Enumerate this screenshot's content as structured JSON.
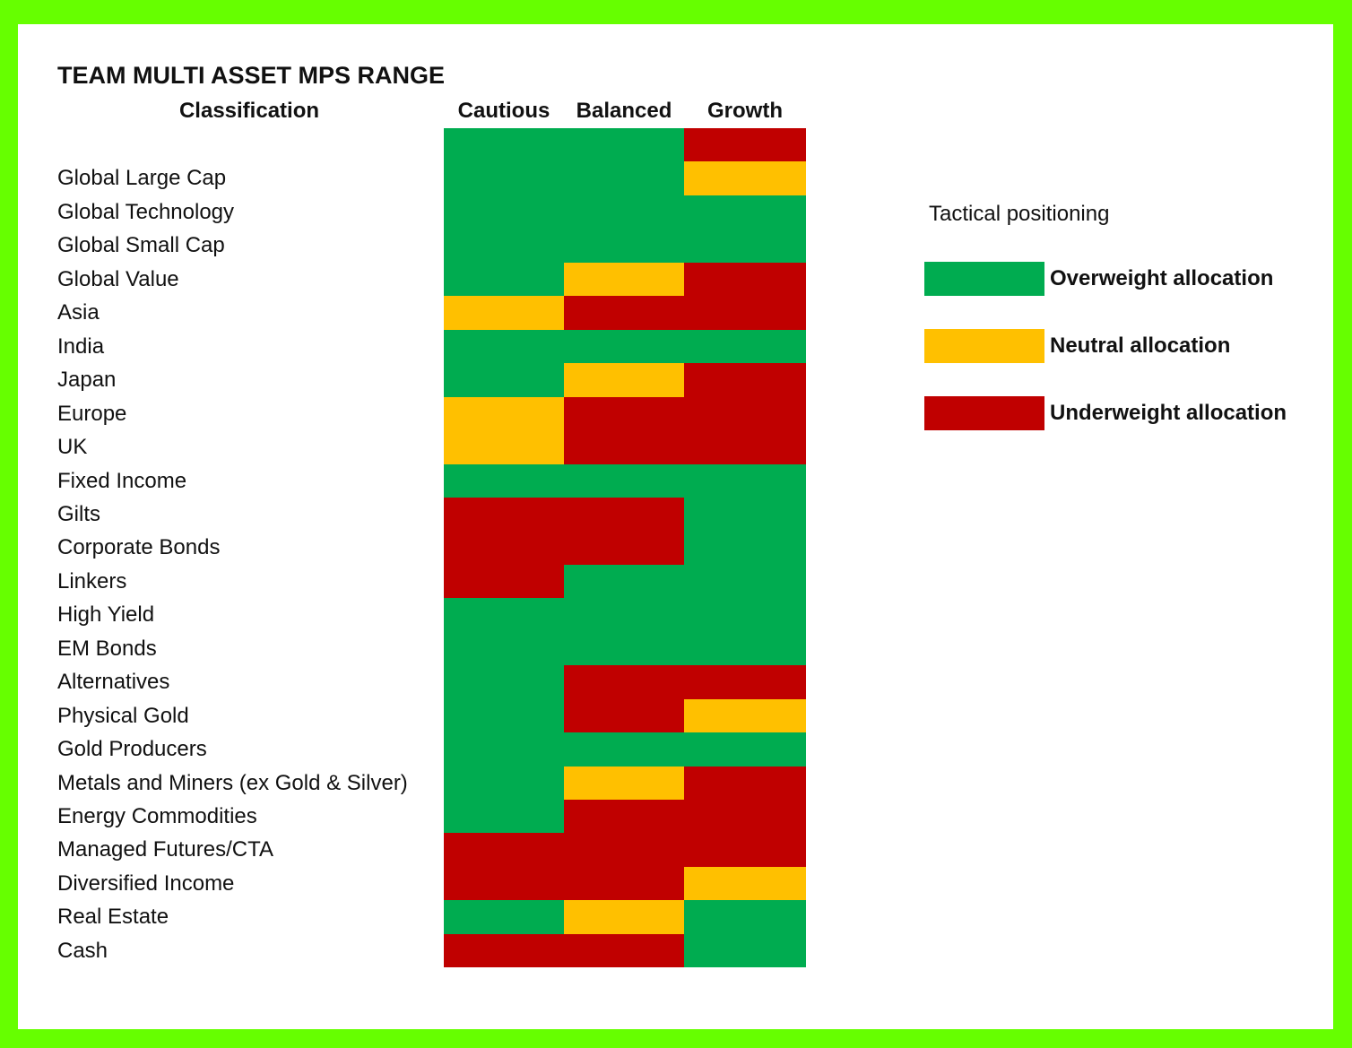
{
  "chart_data": {
    "type": "heatmap",
    "title": "TEAM MULTI ASSET MPS RANGE",
    "row_header": "Classification",
    "columns": [
      "Cautious",
      "Balanced",
      "Growth"
    ],
    "rows": [
      {
        "label": "",
        "values": [
          "overweight",
          "overweight",
          "underweight"
        ]
      },
      {
        "label": "Global Large Cap",
        "values": [
          "overweight",
          "overweight",
          "neutral"
        ]
      },
      {
        "label": "Global Technology",
        "values": [
          "overweight",
          "overweight",
          "overweight"
        ]
      },
      {
        "label": "Global Small Cap",
        "values": [
          "overweight",
          "overweight",
          "overweight"
        ]
      },
      {
        "label": "Global Value",
        "values": [
          "overweight",
          "neutral",
          "underweight"
        ]
      },
      {
        "label": "Asia",
        "values": [
          "neutral",
          "underweight",
          "underweight"
        ]
      },
      {
        "label": "India",
        "values": [
          "overweight",
          "overweight",
          "overweight"
        ]
      },
      {
        "label": "Japan",
        "values": [
          "overweight",
          "neutral",
          "underweight"
        ]
      },
      {
        "label": "Europe",
        "values": [
          "neutral",
          "underweight",
          "underweight"
        ]
      },
      {
        "label": "UK",
        "values": [
          "neutral",
          "underweight",
          "underweight"
        ]
      },
      {
        "label": "Fixed Income",
        "values": [
          "overweight",
          "overweight",
          "overweight"
        ]
      },
      {
        "label": "Gilts",
        "values": [
          "underweight",
          "underweight",
          "overweight"
        ]
      },
      {
        "label": "Corporate Bonds",
        "values": [
          "underweight",
          "underweight",
          "overweight"
        ]
      },
      {
        "label": "Linkers",
        "values": [
          "underweight",
          "overweight",
          "overweight"
        ]
      },
      {
        "label": "High Yield",
        "values": [
          "overweight",
          "overweight",
          "overweight"
        ]
      },
      {
        "label": "EM Bonds",
        "values": [
          "overweight",
          "overweight",
          "overweight"
        ]
      },
      {
        "label": "Alternatives",
        "values": [
          "overweight",
          "underweight",
          "underweight"
        ]
      },
      {
        "label": "Physical Gold",
        "values": [
          "overweight",
          "underweight",
          "neutral"
        ]
      },
      {
        "label": "Gold Producers",
        "values": [
          "overweight",
          "overweight",
          "overweight"
        ]
      },
      {
        "label": "Metals and Miners (ex Gold & Silver)",
        "values": [
          "overweight",
          "neutral",
          "underweight"
        ]
      },
      {
        "label": "Energy Commodities",
        "values": [
          "overweight",
          "underweight",
          "underweight"
        ]
      },
      {
        "label": "Managed Futures/CTA",
        "values": [
          "underweight",
          "underweight",
          "underweight"
        ]
      },
      {
        "label": "Diversified Income",
        "values": [
          "underweight",
          "underweight",
          "neutral"
        ]
      },
      {
        "label": "Real Estate",
        "values": [
          "overweight",
          "neutral",
          "overweight"
        ]
      },
      {
        "label": "Cash",
        "values": [
          "underweight",
          "underweight",
          "overweight"
        ]
      }
    ],
    "legend": {
      "title": "Tactical positioning",
      "placement": "right",
      "items": [
        {
          "key": "overweight",
          "label": "Overweight allocation",
          "color": "#00ac50"
        },
        {
          "key": "neutral",
          "label": "Neutral allocation",
          "color": "#ffc000"
        },
        {
          "key": "underweight",
          "label": "Underweight allocation",
          "color": "#c00000"
        }
      ]
    },
    "frame_color": "#66ff00"
  }
}
